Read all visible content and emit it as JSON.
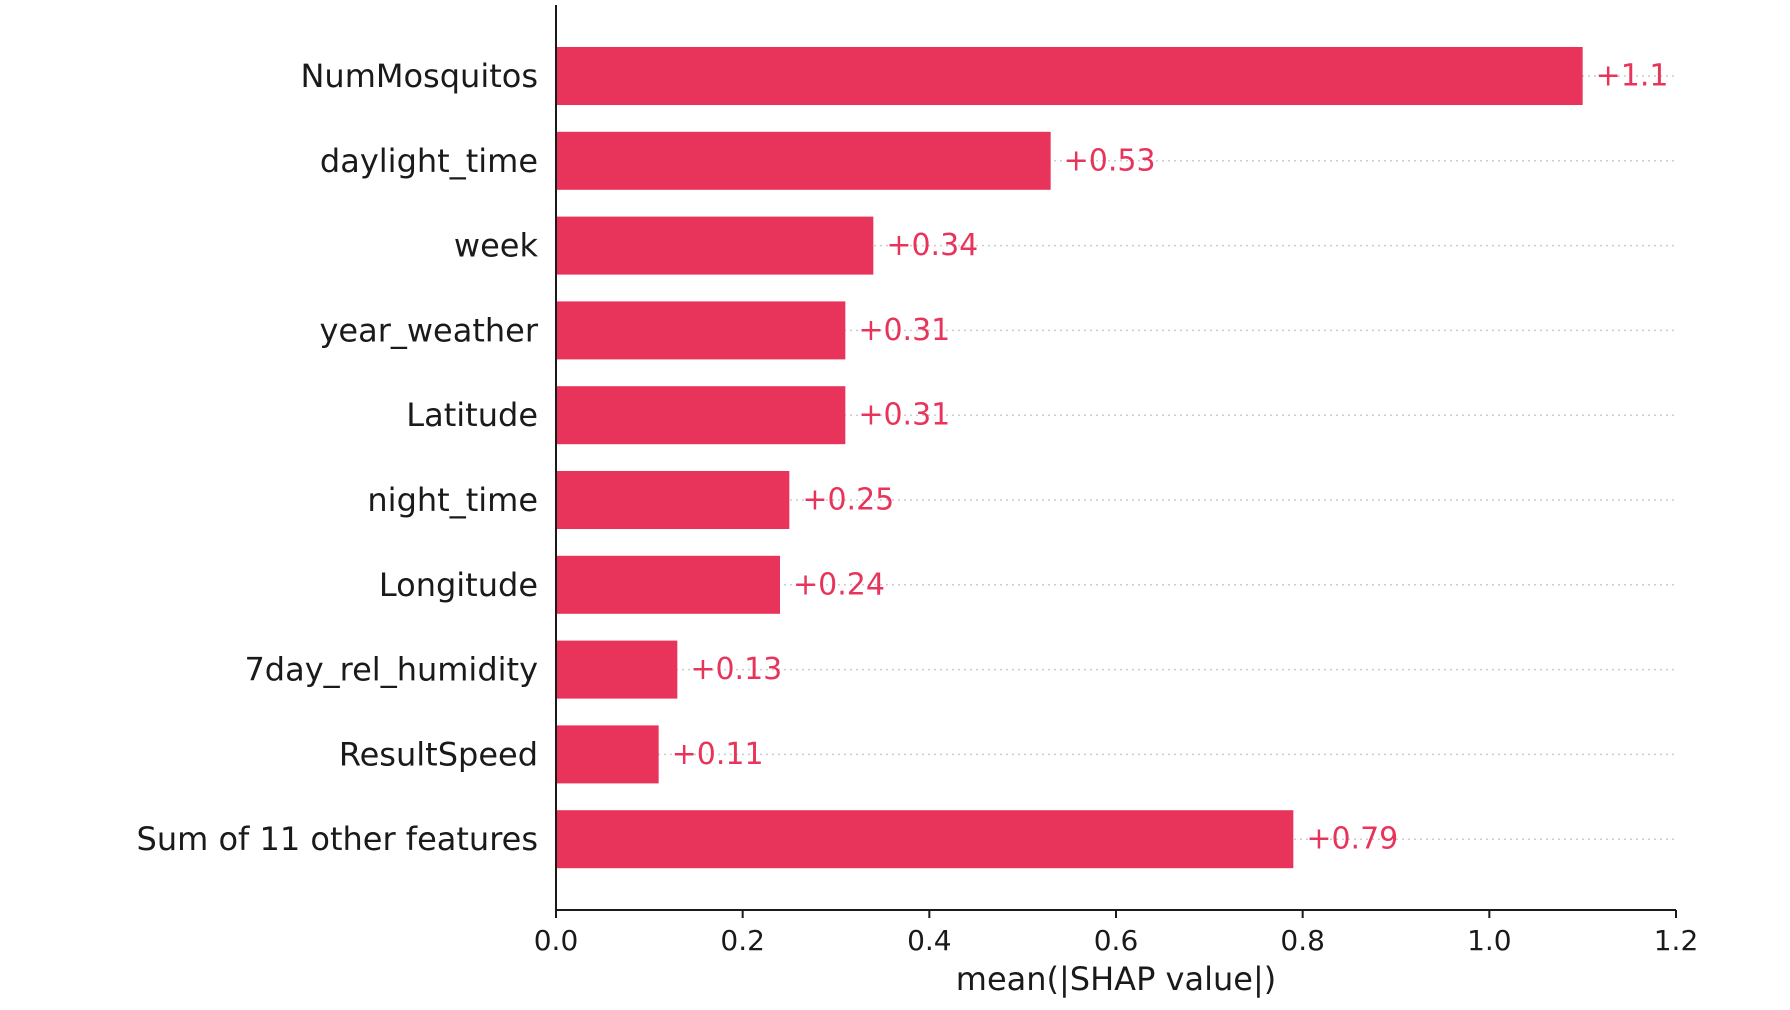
{
  "chart_data": {
    "type": "bar",
    "orientation": "horizontal",
    "title": "",
    "xlabel": "mean(|SHAP value|)",
    "ylabel": "",
    "xlim": [
      0,
      1.2
    ],
    "xticks": [
      0.0,
      0.2,
      0.4,
      0.6,
      0.8,
      1.0,
      1.2
    ],
    "xtick_labels": [
      "0.0",
      "0.2",
      "0.4",
      "0.6",
      "0.8",
      "1.0",
      "1.2"
    ],
    "grid": "dotted horizontal guide per bar",
    "legend": "none",
    "bar_color": "#e8345a",
    "label_color": "#e8345a",
    "categories": [
      "NumMosquitos",
      "daylight_time",
      "week",
      "year_weather",
      "Latitude",
      "night_time",
      "Longitude",
      "7day_rel_humidity",
      "ResultSpeed",
      "Sum of 11 other features"
    ],
    "values": [
      1.1,
      0.53,
      0.34,
      0.31,
      0.31,
      0.25,
      0.24,
      0.13,
      0.11,
      0.79
    ],
    "value_labels": [
      "+1.1",
      "+0.53",
      "+0.34",
      "+0.31",
      "+0.31",
      "+0.25",
      "+0.24",
      "+0.13",
      "+0.11",
      "+0.79"
    ]
  }
}
